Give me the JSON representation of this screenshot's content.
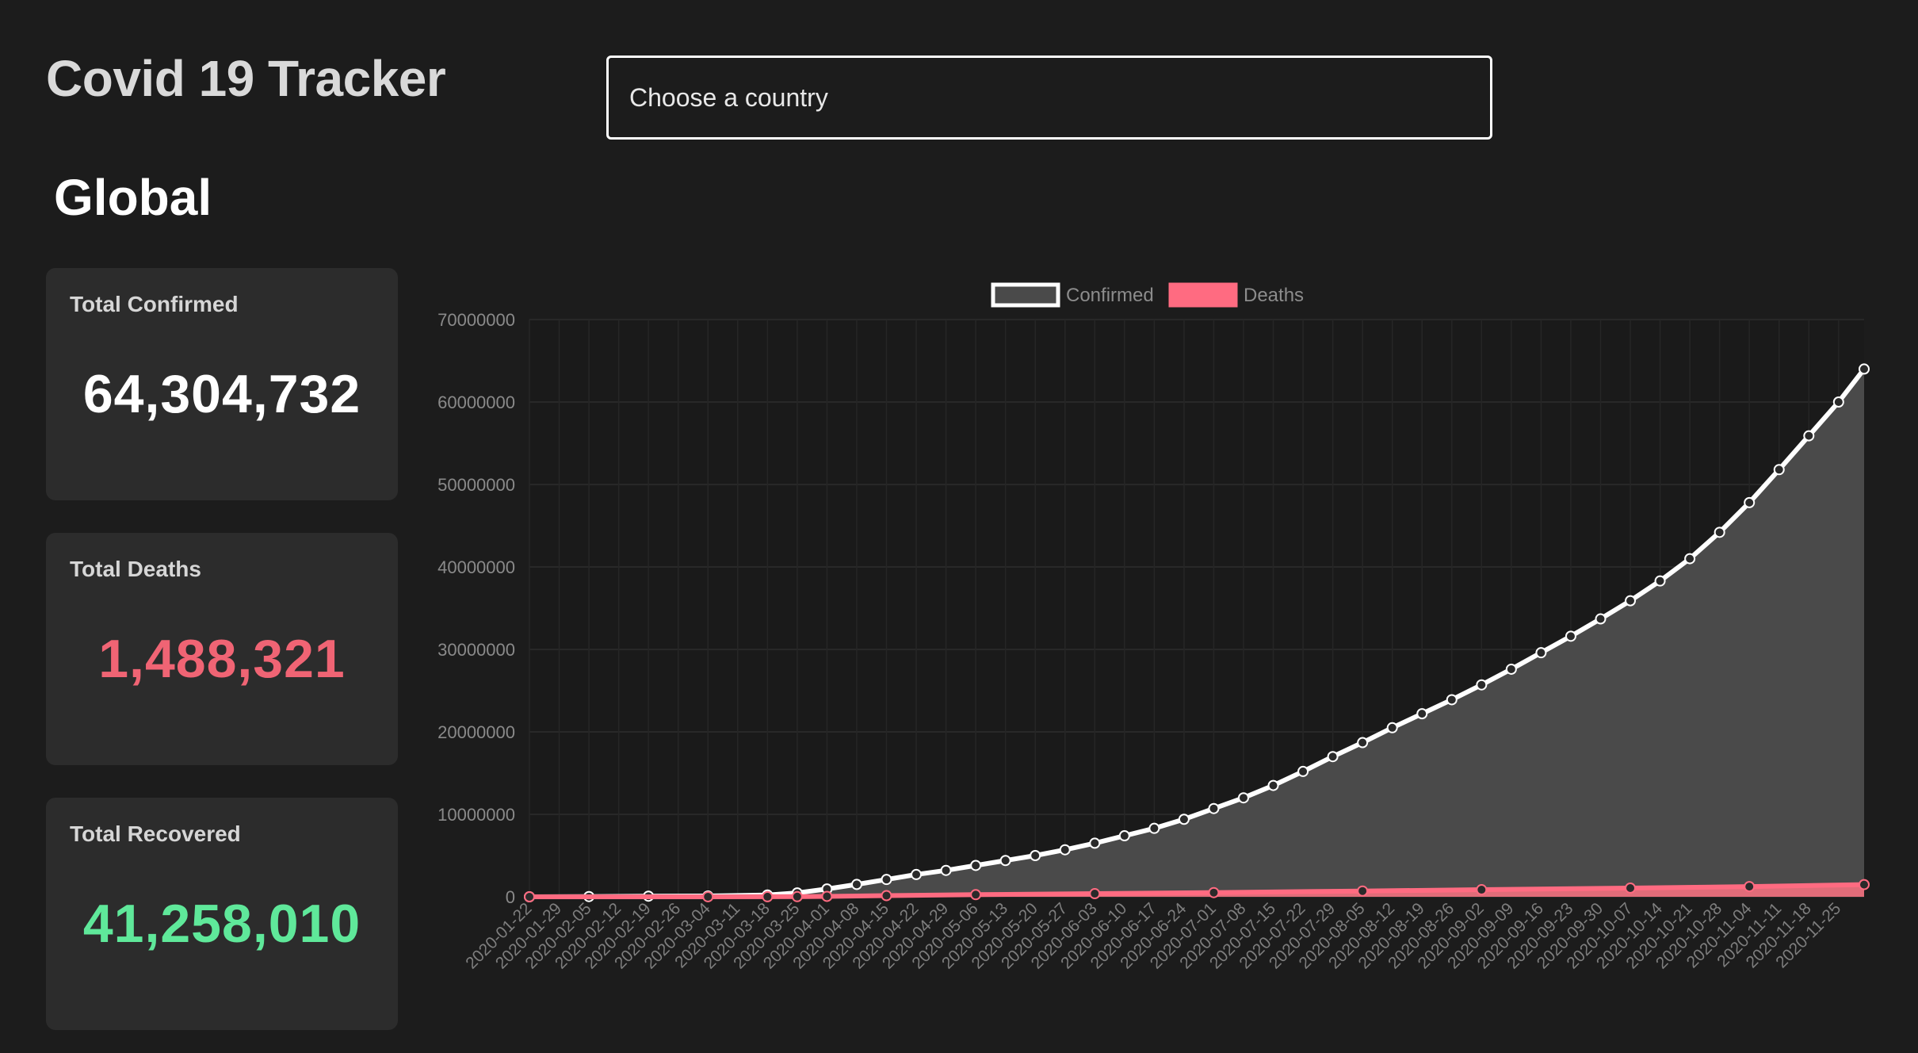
{
  "header": {
    "title": "Covid 19 Tracker",
    "country_placeholder": "Choose a country"
  },
  "section": {
    "title": "Global"
  },
  "cards": {
    "confirmed": {
      "label": "Total Confirmed",
      "value": "64,304,732",
      "color": "#ffffff"
    },
    "deaths": {
      "label": "Total Deaths",
      "value": "1,488,321",
      "color": "#f06474"
    },
    "recovered": {
      "label": "Total Recovered",
      "value": "41,258,010",
      "color": "#5fe89a"
    }
  },
  "chart_data": {
    "type": "area",
    "legend_placement": "top-center",
    "grid": true,
    "ylim": [
      0,
      70000000
    ],
    "yticks": [
      0,
      10000000,
      20000000,
      30000000,
      40000000,
      50000000,
      60000000,
      70000000
    ],
    "ytick_labels": [
      "0",
      "10000000",
      "20000000",
      "30000000",
      "40000000",
      "50000000",
      "60000000",
      "70000000"
    ],
    "x_range": [
      "2020-01-22",
      "2020-12-01"
    ],
    "xtick_labels": [
      "2020-01-22",
      "2020-01-29",
      "2020-02-05",
      "2020-02-12",
      "2020-02-19",
      "2020-02-26",
      "2020-03-04",
      "2020-03-11",
      "2020-03-18",
      "2020-03-25",
      "2020-04-01",
      "2020-04-08",
      "2020-04-15",
      "2020-04-22",
      "2020-04-29",
      "2020-05-06",
      "2020-05-13",
      "2020-05-20",
      "2020-05-27",
      "2020-06-03",
      "2020-06-10",
      "2020-06-17",
      "2020-06-24",
      "2020-07-01",
      "2020-07-08",
      "2020-07-15",
      "2020-07-22",
      "2020-07-29",
      "2020-08-05",
      "2020-08-12",
      "2020-08-19",
      "2020-08-26",
      "2020-09-02",
      "2020-09-09",
      "2020-09-16",
      "2020-09-23",
      "2020-09-30",
      "2020-10-07",
      "2020-10-14",
      "2020-10-21",
      "2020-10-28",
      "2020-11-04",
      "2020-11-11",
      "2020-11-18",
      "2020-11-25"
    ],
    "series": [
      {
        "name": "Confirmed",
        "color": "#ffffff",
        "fill": "#4a4a4a",
        "points": [
          [
            "2020-01-22",
            0
          ],
          [
            "2020-02-05",
            30000
          ],
          [
            "2020-02-19",
            75000
          ],
          [
            "2020-03-04",
            95000
          ],
          [
            "2020-03-18",
            220000
          ],
          [
            "2020-03-25",
            470000
          ],
          [
            "2020-04-01",
            950000
          ],
          [
            "2020-04-08",
            1500000
          ],
          [
            "2020-04-15",
            2100000
          ],
          [
            "2020-04-22",
            2700000
          ],
          [
            "2020-04-29",
            3200000
          ],
          [
            "2020-05-06",
            3800000
          ],
          [
            "2020-05-13",
            4400000
          ],
          [
            "2020-05-20",
            5000000
          ],
          [
            "2020-05-27",
            5700000
          ],
          [
            "2020-06-03",
            6500000
          ],
          [
            "2020-06-10",
            7400000
          ],
          [
            "2020-06-17",
            8300000
          ],
          [
            "2020-06-24",
            9400000
          ],
          [
            "2020-07-01",
            10700000
          ],
          [
            "2020-07-08",
            12000000
          ],
          [
            "2020-07-15",
            13500000
          ],
          [
            "2020-07-22",
            15200000
          ],
          [
            "2020-07-29",
            17000000
          ],
          [
            "2020-08-05",
            18700000
          ],
          [
            "2020-08-12",
            20500000
          ],
          [
            "2020-08-19",
            22200000
          ],
          [
            "2020-08-26",
            23900000
          ],
          [
            "2020-09-02",
            25700000
          ],
          [
            "2020-09-09",
            27600000
          ],
          [
            "2020-09-16",
            29600000
          ],
          [
            "2020-09-23",
            31600000
          ],
          [
            "2020-09-30",
            33700000
          ],
          [
            "2020-10-07",
            35900000
          ],
          [
            "2020-10-14",
            38300000
          ],
          [
            "2020-10-21",
            41000000
          ],
          [
            "2020-10-28",
            44200000
          ],
          [
            "2020-11-04",
            47800000
          ],
          [
            "2020-11-11",
            51800000
          ],
          [
            "2020-11-18",
            55900000
          ],
          [
            "2020-11-25",
            60000000
          ],
          [
            "2020-12-01",
            64000000
          ]
        ]
      },
      {
        "name": "Deaths",
        "color": "#ff6b81",
        "fill": "#f2707e",
        "points": [
          [
            "2020-01-22",
            0
          ],
          [
            "2020-03-04",
            3000
          ],
          [
            "2020-03-18",
            9000
          ],
          [
            "2020-03-25",
            20000
          ],
          [
            "2020-04-01",
            50000
          ],
          [
            "2020-04-15",
            140000
          ],
          [
            "2020-05-06",
            260000
          ],
          [
            "2020-06-03",
            380000
          ],
          [
            "2020-07-01",
            510000
          ],
          [
            "2020-08-05",
            700000
          ],
          [
            "2020-09-02",
            860000
          ],
          [
            "2020-10-07",
            1060000
          ],
          [
            "2020-11-04",
            1240000
          ],
          [
            "2020-12-01",
            1480000
          ]
        ]
      }
    ]
  }
}
